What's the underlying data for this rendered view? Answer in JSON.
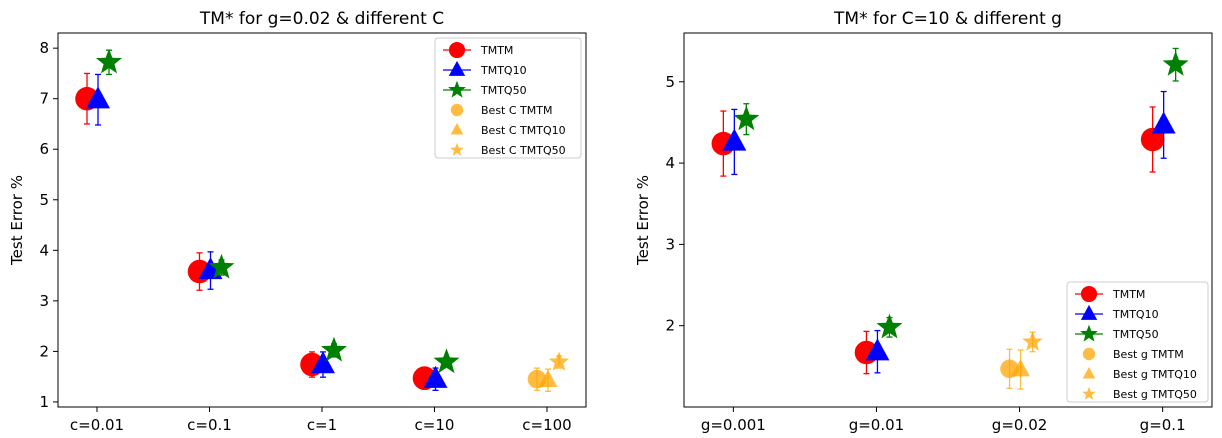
{
  "chart_data": [
    {
      "type": "scatter",
      "title": "TM* for g=0.02 & different C",
      "xlabel": "",
      "ylabel": "Test Error %",
      "categories": [
        "c=0.01",
        "c=0.1",
        "c=1",
        "c=10",
        "c=100"
      ],
      "ylim": [
        0.9,
        8.3
      ],
      "yticks": [
        "1",
        "2",
        "3",
        "4",
        "5",
        "6",
        "7",
        "8"
      ],
      "legend_position": "top-right",
      "grid": false,
      "series": [
        {
          "name": "TMTM",
          "marker": "circle",
          "color": "#ff0000",
          "values": [
            7.0,
            3.58,
            1.74,
            1.47,
            null
          ],
          "err": [
            0.5,
            0.37,
            0.25,
            0.22,
            null
          ]
        },
        {
          "name": "TMTQ10",
          "marker": "triangle",
          "color": "#0000ff",
          "values": [
            6.98,
            3.6,
            1.74,
            1.45,
            null
          ],
          "err": [
            0.5,
            0.37,
            0.25,
            0.22,
            null
          ]
        },
        {
          "name": "TMTQ50",
          "marker": "star",
          "color": "#008000",
          "values": [
            7.72,
            3.66,
            2.02,
            1.79,
            null
          ],
          "err": [
            0.24,
            0.15,
            0.13,
            0.1,
            null
          ]
        },
        {
          "name": "Best C TMTM",
          "marker": "circle",
          "color": "#ffa500",
          "best": true,
          "values": [
            null,
            null,
            null,
            null,
            1.45
          ],
          "err": [
            null,
            null,
            null,
            null,
            0.22
          ]
        },
        {
          "name": "Best C TMTQ10",
          "marker": "triangle",
          "color": "#ffa500",
          "best": true,
          "values": [
            null,
            null,
            null,
            null,
            1.43
          ],
          "err": [
            null,
            null,
            null,
            null,
            0.22
          ]
        },
        {
          "name": "Best C TMTQ50",
          "marker": "star",
          "color": "#ffa500",
          "best": true,
          "values": [
            null,
            null,
            null,
            null,
            1.79
          ],
          "err": [
            null,
            null,
            null,
            null,
            0.12
          ]
        }
      ]
    },
    {
      "type": "scatter",
      "title": "TM* for C=10 & different g",
      "xlabel": "",
      "ylabel": "Test Error %",
      "categories": [
        "g=0.001",
        "g=0.01",
        "g=0.02",
        "g=0.1"
      ],
      "ylim": [
        1.0,
        5.6
      ],
      "yticks": [
        "2",
        "3",
        "4",
        "5"
      ],
      "legend_position": "bottom-right",
      "grid": false,
      "series": [
        {
          "name": "TMTM",
          "marker": "circle",
          "color": "#ff0000",
          "values": [
            4.24,
            1.67,
            null,
            4.29
          ],
          "err": [
            0.4,
            0.26,
            null,
            0.4
          ]
        },
        {
          "name": "TMTQ10",
          "marker": "triangle",
          "color": "#0000ff",
          "values": [
            4.26,
            1.68,
            null,
            4.47
          ],
          "err": [
            0.4,
            0.26,
            null,
            0.41
          ]
        },
        {
          "name": "TMTQ50",
          "marker": "star",
          "color": "#008000",
          "values": [
            4.54,
            1.98,
            null,
            5.21
          ],
          "err": [
            0.19,
            0.12,
            null,
            0.2
          ]
        },
        {
          "name": "Best g TMTM",
          "marker": "circle",
          "color": "#ffa500",
          "best": true,
          "values": [
            null,
            null,
            1.47,
            null
          ],
          "err": [
            null,
            null,
            0.24,
            null
          ]
        },
        {
          "name": "Best g TMTQ10",
          "marker": "triangle",
          "color": "#ffa500",
          "best": true,
          "values": [
            null,
            null,
            1.46,
            null
          ],
          "err": [
            null,
            null,
            0.24,
            null
          ]
        },
        {
          "name": "Best g TMTQ50",
          "marker": "star",
          "color": "#ffa500",
          "best": true,
          "values": [
            null,
            null,
            1.8,
            null
          ],
          "err": [
            null,
            null,
            0.12,
            null
          ]
        }
      ]
    }
  ]
}
